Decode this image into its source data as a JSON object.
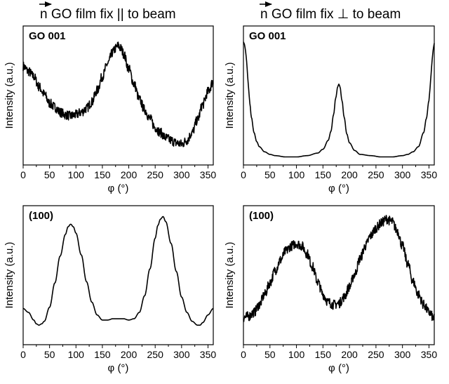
{
  "headers": [
    {
      "vector_symbol": "n",
      "text": " GO film fix || to beam"
    },
    {
      "vector_symbol": "n",
      "text": " GO film fix ⊥ to beam"
    }
  ],
  "chart_data": [
    {
      "type": "line",
      "panel_label": "GO 001",
      "xlabel": "φ (°)",
      "ylabel": "Intensity (a.u.)",
      "xlim": [
        0,
        360
      ],
      "ylim": [
        0,
        1
      ],
      "xticks": [
        0,
        50,
        100,
        150,
        200,
        250,
        300,
        350
      ],
      "noisy": true,
      "series": [
        {
          "x": [
            0,
            10,
            20,
            30,
            40,
            50,
            60,
            70,
            80,
            90,
            100,
            110,
            120,
            130,
            140,
            150,
            160,
            170,
            175,
            180,
            185,
            190,
            200,
            210,
            220,
            230,
            240,
            250,
            260,
            270,
            280,
            290,
            300,
            310,
            320,
            330,
            340,
            350,
            360
          ],
          "y": [
            0.74,
            0.7,
            0.66,
            0.58,
            0.52,
            0.45,
            0.42,
            0.38,
            0.36,
            0.35,
            0.36,
            0.38,
            0.41,
            0.46,
            0.55,
            0.66,
            0.76,
            0.85,
            0.88,
            0.9,
            0.88,
            0.84,
            0.72,
            0.6,
            0.48,
            0.4,
            0.33,
            0.26,
            0.22,
            0.18,
            0.16,
            0.14,
            0.13,
            0.16,
            0.22,
            0.32,
            0.44,
            0.54,
            0.62
          ]
        }
      ]
    },
    {
      "type": "line",
      "panel_label": "GO 001",
      "xlabel": "φ (°)",
      "ylabel": "Intensity (a.u.)",
      "xlim": [
        0,
        360
      ],
      "ylim": [
        0,
        1
      ],
      "xticks": [
        0,
        50,
        100,
        150,
        200,
        250,
        300,
        350
      ],
      "noisy": false,
      "series": [
        {
          "x": [
            0,
            2,
            4,
            6,
            8,
            10,
            12,
            15,
            20,
            25,
            30,
            40,
            50,
            60,
            80,
            100,
            120,
            140,
            150,
            160,
            165,
            170,
            174,
            178,
            180,
            182,
            186,
            190,
            195,
            200,
            210,
            220,
            240,
            260,
            280,
            300,
            310,
            320,
            330,
            340,
            345,
            350,
            352,
            354,
            356,
            358,
            360
          ],
          "y": [
            0.93,
            0.91,
            0.86,
            0.78,
            0.66,
            0.55,
            0.45,
            0.34,
            0.22,
            0.15,
            0.11,
            0.07,
            0.05,
            0.04,
            0.03,
            0.03,
            0.04,
            0.06,
            0.09,
            0.16,
            0.23,
            0.36,
            0.49,
            0.58,
            0.6,
            0.58,
            0.47,
            0.34,
            0.21,
            0.14,
            0.08,
            0.05,
            0.04,
            0.03,
            0.03,
            0.04,
            0.05,
            0.07,
            0.11,
            0.22,
            0.33,
            0.47,
            0.57,
            0.68,
            0.79,
            0.87,
            0.92
          ]
        }
      ]
    },
    {
      "type": "line",
      "panel_label": "(100)",
      "xlabel": "φ (°)",
      "ylabel": "Intensity (a.u.)",
      "xlim": [
        0,
        360
      ],
      "ylim": [
        0,
        1
      ],
      "xticks": [
        0,
        50,
        100,
        150,
        200,
        250,
        300,
        350
      ],
      "noisy": false,
      "series": [
        {
          "x": [
            0,
            10,
            20,
            25,
            30,
            35,
            40,
            50,
            60,
            70,
            80,
            85,
            90,
            95,
            100,
            110,
            120,
            130,
            140,
            150,
            160,
            170,
            180,
            190,
            200,
            210,
            220,
            230,
            240,
            250,
            255,
            260,
            265,
            270,
            280,
            290,
            300,
            310,
            320,
            330,
            335,
            340,
            350,
            360
          ],
          "y": [
            0.25,
            0.22,
            0.16,
            0.13,
            0.12,
            0.13,
            0.15,
            0.26,
            0.45,
            0.66,
            0.83,
            0.89,
            0.91,
            0.89,
            0.84,
            0.67,
            0.46,
            0.3,
            0.2,
            0.16,
            0.16,
            0.17,
            0.17,
            0.17,
            0.16,
            0.17,
            0.22,
            0.35,
            0.56,
            0.8,
            0.9,
            0.95,
            0.97,
            0.93,
            0.76,
            0.54,
            0.34,
            0.22,
            0.15,
            0.12,
            0.12,
            0.14,
            0.2,
            0.25
          ]
        }
      ]
    },
    {
      "type": "line",
      "panel_label": "(100)",
      "xlabel": "φ (°)",
      "ylabel": "Intensity (a.u.)",
      "xlim": [
        0,
        360
      ],
      "ylim": [
        0,
        1
      ],
      "xticks": [
        0,
        50,
        100,
        150,
        200,
        250,
        300,
        350
      ],
      "noisy": true,
      "series": [
        {
          "x": [
            0,
            10,
            20,
            30,
            40,
            50,
            60,
            70,
            80,
            90,
            100,
            110,
            120,
            130,
            140,
            150,
            160,
            170,
            180,
            190,
            200,
            210,
            220,
            230,
            240,
            250,
            260,
            270,
            280,
            290,
            300,
            310,
            320,
            330,
            340,
            350,
            360
          ],
          "y": [
            0.18,
            0.19,
            0.22,
            0.28,
            0.36,
            0.45,
            0.55,
            0.63,
            0.7,
            0.74,
            0.76,
            0.74,
            0.68,
            0.58,
            0.46,
            0.36,
            0.3,
            0.28,
            0.29,
            0.34,
            0.42,
            0.52,
            0.64,
            0.74,
            0.82,
            0.88,
            0.92,
            0.95,
            0.93,
            0.86,
            0.74,
            0.6,
            0.46,
            0.36,
            0.28,
            0.22,
            0.17
          ]
        }
      ]
    }
  ]
}
